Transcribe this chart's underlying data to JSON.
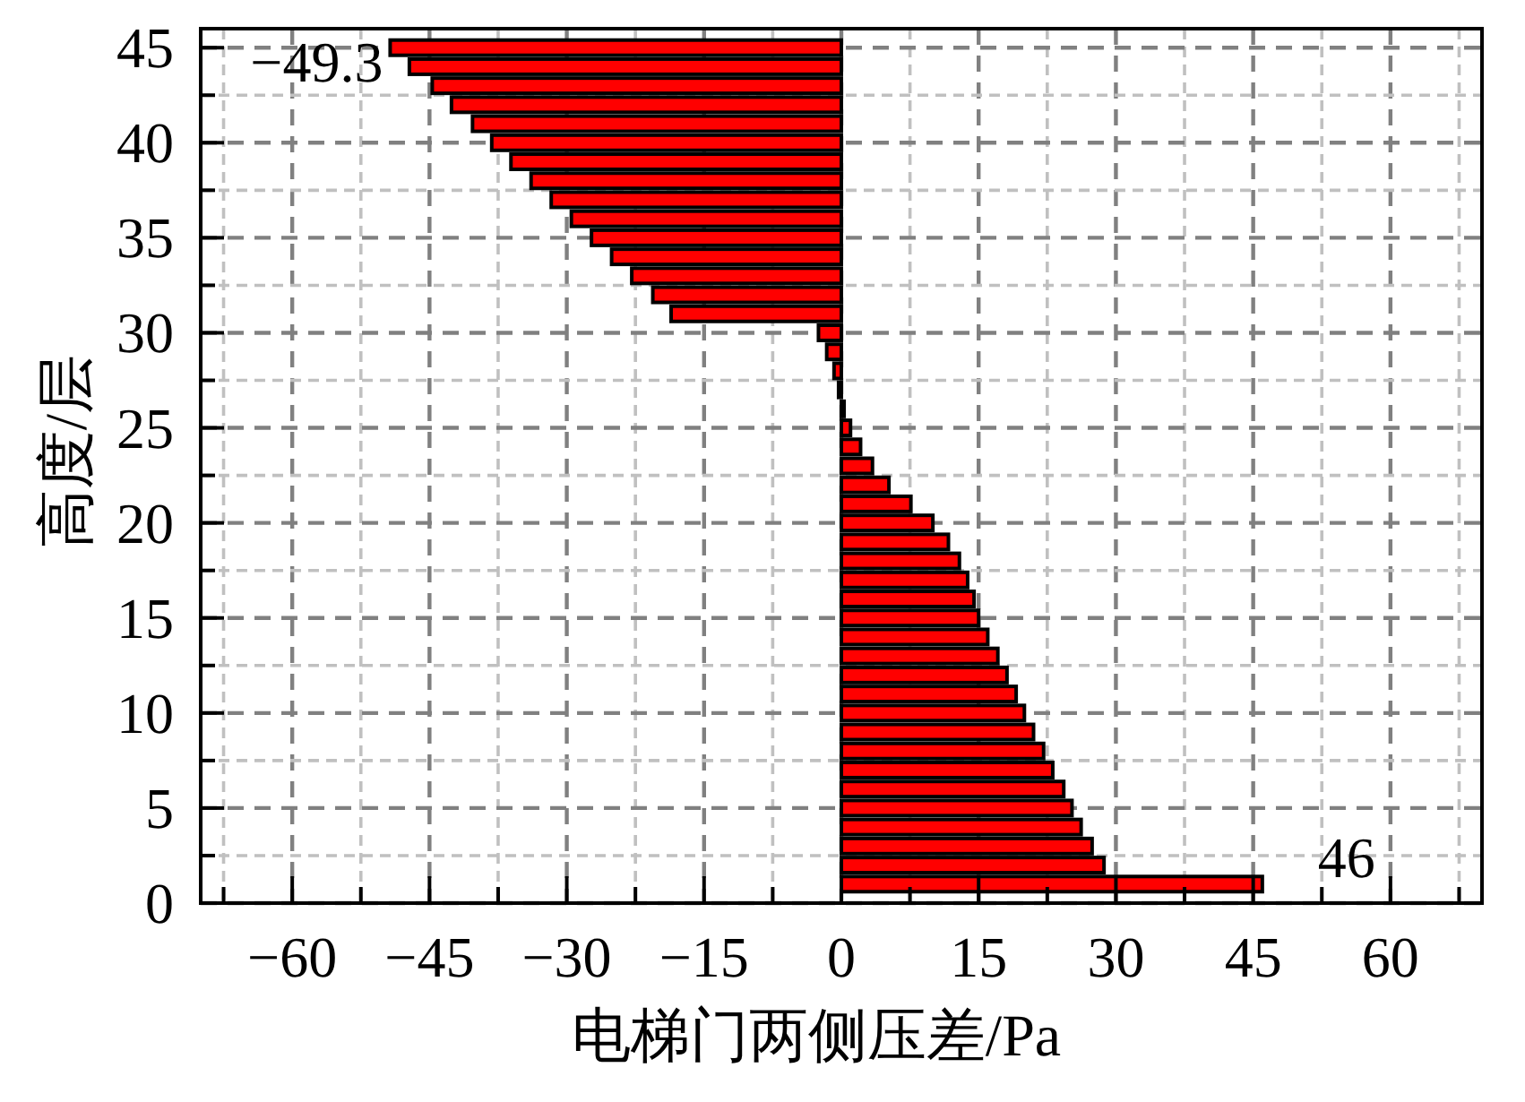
{
  "chart_data": {
    "type": "bar",
    "orientation": "horizontal",
    "xlabel": "电梯门两侧压差/Pa",
    "ylabel": "高度/层",
    "x": [
      1,
      2,
      3,
      4,
      5,
      6,
      7,
      8,
      9,
      10,
      11,
      12,
      13,
      14,
      15,
      16,
      17,
      18,
      19,
      20,
      21,
      22,
      23,
      24,
      25,
      26,
      27,
      28,
      29,
      30,
      31,
      32,
      33,
      34,
      35,
      36,
      37,
      38,
      39,
      40,
      41,
      42,
      43,
      44,
      45
    ],
    "values": [
      46,
      28.7,
      27.4,
      26.2,
      25.2,
      24.3,
      23.1,
      22.1,
      21.0,
      20.0,
      19.1,
      18.1,
      17.1,
      16.0,
      15.0,
      14.5,
      13.8,
      12.9,
      11.7,
      10.0,
      7.6,
      5.2,
      3.4,
      2.1,
      1.0,
      0.3,
      -0.3,
      -0.8,
      -1.6,
      -2.5,
      -18.6,
      -20.6,
      -22.9,
      -25.1,
      -27.3,
      -29.5,
      -31.7,
      -33.9,
      -36.1,
      -38.2,
      -40.3,
      -42.6,
      -44.7,
      -47.2,
      -49.3
    ],
    "value_labels": [
      "46",
      null,
      null,
      null,
      null,
      null,
      null,
      null,
      null,
      null,
      null,
      null,
      null,
      null,
      null,
      null,
      null,
      null,
      null,
      null,
      null,
      null,
      null,
      null,
      null,
      null,
      null,
      null,
      null,
      null,
      null,
      null,
      null,
      null,
      null,
      null,
      null,
      null,
      null,
      null,
      null,
      null,
      null,
      null,
      "−49.3"
    ],
    "color": "#ff0000",
    "xlim": [
      -70,
      70
    ],
    "xticks": [
      {
        "value": -67.5,
        "label": null
      },
      {
        "value": -60,
        "label": "−60"
      },
      {
        "value": -52.5,
        "label": null
      },
      {
        "value": -45,
        "label": "−45"
      },
      {
        "value": -37.5,
        "label": null
      },
      {
        "value": -30,
        "label": "−30"
      },
      {
        "value": -22.5,
        "label": null
      },
      {
        "value": -15,
        "label": "−15"
      },
      {
        "value": -7.5,
        "label": null
      },
      0,
      {
        "value": 7.5,
        "label": null
      },
      15,
      {
        "value": 22.5,
        "label": null
      },
      30,
      {
        "value": 37.5,
        "label": null
      },
      45,
      {
        "value": 52.5,
        "label": null
      },
      60,
      {
        "value": 67.5,
        "label": null
      }
    ],
    "ylim": [
      0,
      46
    ],
    "yticks": [
      0,
      {
        "value": 2.5,
        "label": null
      },
      5,
      {
        "value": 7.5,
        "label": null
      },
      10,
      {
        "value": 12.5,
        "label": null
      },
      15,
      {
        "value": 17.5,
        "label": null
      },
      20,
      {
        "value": 22.5,
        "label": null
      },
      25,
      {
        "value": 27.5,
        "label": null
      },
      30,
      {
        "value": 32.5,
        "label": null
      },
      35,
      {
        "value": 37.5,
        "label": null
      },
      40,
      {
        "value": 42.5,
        "label": null
      },
      45
    ],
    "grid": true
  }
}
